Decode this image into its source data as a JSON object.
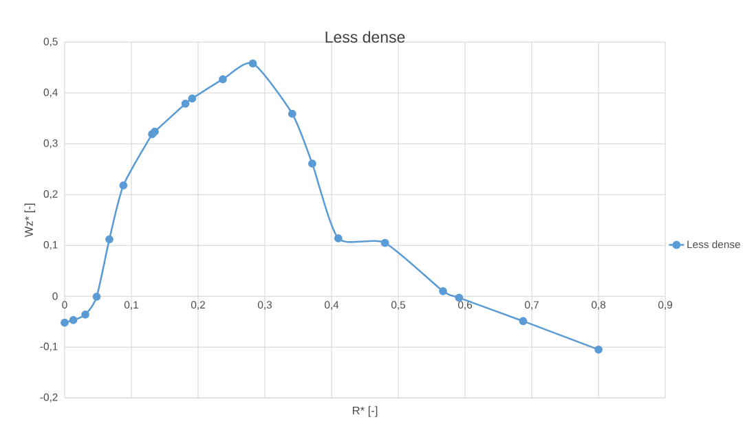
{
  "chart_data": {
    "type": "line",
    "title": "Less dense",
    "xlabel": "R* [-]",
    "ylabel": "Wz* [-]",
    "x": [
      0,
      0.013,
      0.031,
      0.048,
      0.067,
      0.088,
      0.131,
      0.135,
      0.181,
      0.191,
      0.237,
      0.282,
      0.341,
      0.371,
      0.41,
      0.48,
      0.567,
      0.591,
      0.687,
      0.8
    ],
    "series": [
      {
        "name": "Less dense",
        "color": "#5b9bd5",
        "values": [
          -0.052,
          -0.047,
          -0.036,
          -0.001,
          0.112,
          0.218,
          0.319,
          0.324,
          0.379,
          0.389,
          0.427,
          0.458,
          0.359,
          0.261,
          0.114,
          0.105,
          0.01,
          -0.003,
          -0.049,
          -0.105
        ]
      }
    ],
    "xlim": [
      0,
      0.9
    ],
    "ylim": [
      -0.2,
      0.5
    ],
    "xticks": [
      0,
      {
        "value": 0.1,
        "label": "0,1"
      },
      {
        "value": 0.2,
        "label": "0,2"
      },
      {
        "value": 0.3,
        "label": "0,3"
      },
      {
        "value": 0.4,
        "label": "0,4"
      },
      {
        "value": 0.5,
        "label": "0,5"
      },
      {
        "value": 0.6,
        "label": "0,6"
      },
      {
        "value": 0.7,
        "label": "0,7"
      },
      {
        "value": 0.8,
        "label": "0,8"
      },
      {
        "value": 0.9,
        "label": "0,9"
      }
    ],
    "yticks": [
      {
        "value": -0.2,
        "label": "-0,2"
      },
      {
        "value": -0.1,
        "label": "-0,1"
      },
      0,
      {
        "value": 0.1,
        "label": "0,1"
      },
      {
        "value": 0.2,
        "label": "0,2"
      },
      {
        "value": 0.3,
        "label": "0,3"
      },
      {
        "value": 0.4,
        "label": "0,4"
      },
      {
        "value": 0.5,
        "label": "0,5"
      }
    ],
    "grid": true,
    "legend": "right",
    "marker": "circle",
    "line_style": "solid"
  }
}
